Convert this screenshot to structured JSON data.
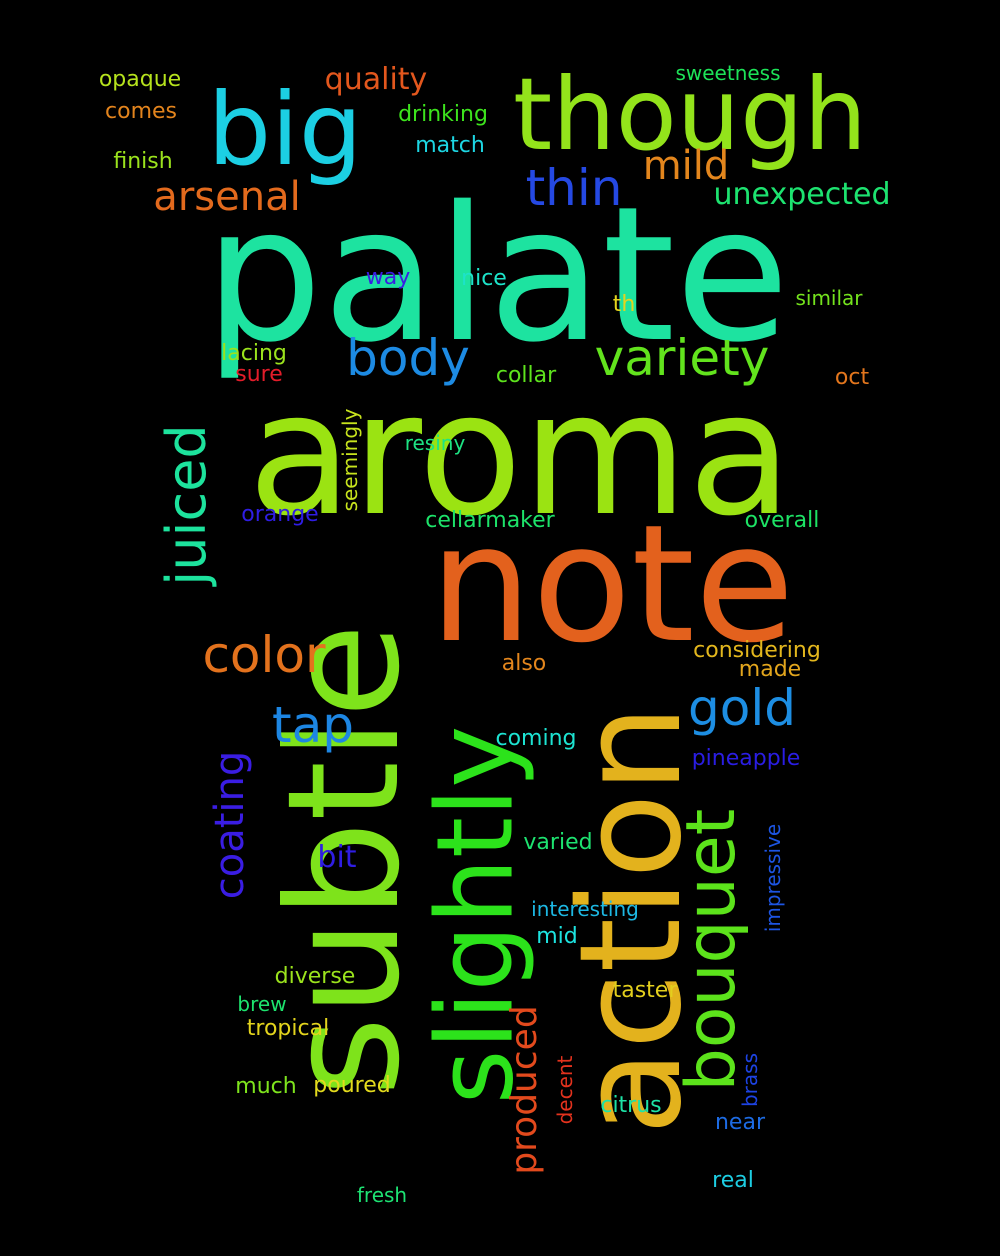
{
  "words": [
    {
      "text": "palate",
      "color": "#1de3a0"
    },
    {
      "text": "aroma",
      "color": "#9be312"
    },
    {
      "text": "note",
      "color": "#e3611d"
    },
    {
      "text": "subtle",
      "color": "#7ee31b"
    },
    {
      "text": "action",
      "color": "#e3b21d"
    },
    {
      "text": "slightly",
      "color": "#2ce31b"
    },
    {
      "text": "though",
      "color": "#93e31b"
    },
    {
      "text": "big",
      "color": "#1ccfe3"
    },
    {
      "text": "bouquet",
      "color": "#5ce31b"
    },
    {
      "text": "juiced",
      "color": "#1de39d"
    },
    {
      "text": "variety",
      "color": "#62e31d"
    },
    {
      "text": "body",
      "color": "#1d8be3"
    },
    {
      "text": "thin",
      "color": "#2549e3"
    },
    {
      "text": "arsenal",
      "color": "#e36a1d"
    },
    {
      "text": "mild",
      "color": "#e3861d"
    },
    {
      "text": "color",
      "color": "#e3721d"
    },
    {
      "text": "gold",
      "color": "#1d8ee3"
    },
    {
      "text": "tap",
      "color": "#1d86e3"
    },
    {
      "text": "coating",
      "color": "#3a1de3"
    },
    {
      "text": "produced",
      "color": "#e34a1d"
    },
    {
      "text": "quality",
      "color": "#e3571d"
    },
    {
      "text": "unexpected",
      "color": "#1de370"
    },
    {
      "text": "opaque",
      "color": "#b6e31d"
    },
    {
      "text": "comes",
      "color": "#e3841d"
    },
    {
      "text": "drinking",
      "color": "#3de31d"
    },
    {
      "text": "sweetness",
      "color": "#1de358"
    },
    {
      "text": "finish",
      "color": "#9be31d"
    },
    {
      "text": "match",
      "color": "#1dd6e3"
    },
    {
      "text": "way",
      "color": "#3a1de3"
    },
    {
      "text": "nice",
      "color": "#1de3c9"
    },
    {
      "text": "th",
      "color": "#e3d41d"
    },
    {
      "text": "similar",
      "color": "#74e31d"
    },
    {
      "text": "lacing",
      "color": "#9be31d"
    },
    {
      "text": "sure",
      "color": "#e31d2a"
    },
    {
      "text": "collar",
      "color": "#5ee31d"
    },
    {
      "text": "oct",
      "color": "#e3761d"
    },
    {
      "text": "seemingly",
      "color": "#c7e31d"
    },
    {
      "text": "resiny",
      "color": "#1de383"
    },
    {
      "text": "orange",
      "color": "#2f1de3"
    },
    {
      "text": "cellarmaker",
      "color": "#1de36a"
    },
    {
      "text": "overall",
      "color": "#1de365"
    },
    {
      "text": "considering",
      "color": "#e3b71d"
    },
    {
      "text": "also",
      "color": "#e3861d"
    },
    {
      "text": "made",
      "color": "#e3a61d"
    },
    {
      "text": "coming",
      "color": "#1de3d2"
    },
    {
      "text": "pineapple",
      "color": "#2a1de3"
    },
    {
      "text": "bit",
      "color": "#2f1de3"
    },
    {
      "text": "varied",
      "color": "#1de370"
    },
    {
      "text": "impressive",
      "color": "#1d55e3"
    },
    {
      "text": "interesting",
      "color": "#1db8e3"
    },
    {
      "text": "mid",
      "color": "#1de3e0"
    },
    {
      "text": "diverse",
      "color": "#9be31d"
    },
    {
      "text": "taster",
      "color": "#e3cf1d"
    },
    {
      "text": "brew",
      "color": "#1de36e"
    },
    {
      "text": "tropical",
      "color": "#e3d41d"
    },
    {
      "text": "decent",
      "color": "#e3321d"
    },
    {
      "text": "brass",
      "color": "#1d43e3"
    },
    {
      "text": "much",
      "color": "#7ee31d"
    },
    {
      "text": "poured",
      "color": "#e3da1d"
    },
    {
      "text": "citrus",
      "color": "#1de3a6"
    },
    {
      "text": "near",
      "color": "#1d6be3"
    },
    {
      "text": "real",
      "color": "#1dcee3"
    },
    {
      "text": "fresh",
      "color": "#1de373"
    }
  ]
}
